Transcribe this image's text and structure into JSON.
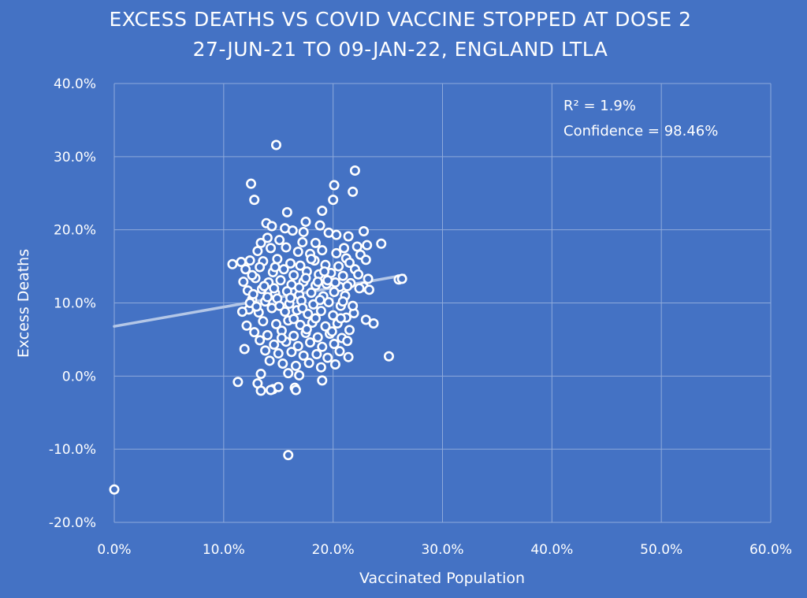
{
  "chart_data": {
    "type": "scatter",
    "title": "EXCESS DEATHS VS COVID VACCINE STOPPED AT DOSE 2",
    "subtitle": "27-JUN-21 TO 09-JAN-22, ENGLAND LTLA",
    "xlabel": "Vaccinated Population",
    "ylabel": "Excess Deaths",
    "xlim": [
      0,
      60
    ],
    "ylim": [
      -20,
      40
    ],
    "x_ticks": [
      "0.0%",
      "10.0%",
      "20.0%",
      "30.0%",
      "40.0%",
      "50.0%",
      "60.0%"
    ],
    "y_ticks": [
      "40.0%",
      "30.0%",
      "20.0%",
      "10.0%",
      "0.0%",
      "-10.0%",
      "-20.0%"
    ],
    "grid": true,
    "annotations": [
      "R² = 1.9%",
      "Confidence = 98.46%"
    ],
    "trendline": {
      "x": [
        0,
        26.5
      ],
      "y": [
        6.8,
        13.8
      ]
    },
    "colors": {
      "background": "#4472c4",
      "marker": "#ffffff",
      "trendline": "#b4c7e7",
      "grid": "#8eaadb"
    },
    "points": [
      [
        0.0,
        -15.5
      ],
      [
        14.8,
        31.6
      ],
      [
        22.0,
        28.1
      ],
      [
        12.5,
        26.3
      ],
      [
        20.1,
        26.1
      ],
      [
        21.8,
        25.2
      ],
      [
        12.8,
        24.1
      ],
      [
        20.0,
        24.1
      ],
      [
        19.0,
        22.6
      ],
      [
        15.8,
        22.4
      ],
      [
        17.5,
        21.1
      ],
      [
        13.9,
        20.9
      ],
      [
        18.8,
        20.6
      ],
      [
        14.4,
        20.5
      ],
      [
        15.6,
        20.2
      ],
      [
        16.3,
        19.9
      ],
      [
        17.3,
        19.7
      ],
      [
        19.6,
        19.6
      ],
      [
        20.3,
        19.3
      ],
      [
        21.4,
        19.1
      ],
      [
        22.8,
        19.8
      ],
      [
        14.0,
        18.9
      ],
      [
        15.1,
        18.6
      ],
      [
        17.2,
        18.3
      ],
      [
        18.4,
        18.2
      ],
      [
        21.0,
        17.5
      ],
      [
        22.2,
        17.7
      ],
      [
        23.1,
        17.9
      ],
      [
        24.4,
        18.1
      ],
      [
        13.4,
        18.2
      ],
      [
        13.1,
        17.1
      ],
      [
        14.3,
        17.5
      ],
      [
        15.7,
        17.6
      ],
      [
        16.8,
        17.0
      ],
      [
        17.9,
        16.7
      ],
      [
        19.0,
        17.2
      ],
      [
        20.3,
        16.8
      ],
      [
        21.2,
        16.1
      ],
      [
        22.5,
        16.6
      ],
      [
        23.0,
        15.9
      ],
      [
        10.8,
        15.3
      ],
      [
        11.6,
        15.6
      ],
      [
        12.4,
        15.8
      ],
      [
        13.6,
        15.7
      ],
      [
        14.9,
        16.0
      ],
      [
        16.1,
        15.4
      ],
      [
        17.0,
        15.1
      ],
      [
        18.3,
        15.8
      ],
      [
        19.3,
        15.2
      ],
      [
        20.5,
        15.0
      ],
      [
        21.5,
        15.5
      ],
      [
        22.0,
        14.6
      ],
      [
        12.0,
        14.6
      ],
      [
        13.3,
        14.9
      ],
      [
        14.5,
        14.2
      ],
      [
        15.5,
        14.6
      ],
      [
        16.4,
        13.8
      ],
      [
        17.6,
        14.3
      ],
      [
        18.7,
        13.9
      ],
      [
        19.8,
        14.1
      ],
      [
        20.9,
        13.7
      ],
      [
        22.3,
        13.9
      ],
      [
        23.2,
        13.3
      ],
      [
        11.8,
        12.9
      ],
      [
        12.9,
        13.4
      ],
      [
        14.1,
        12.8
      ],
      [
        15.2,
        13.1
      ],
      [
        16.2,
        12.5
      ],
      [
        17.3,
        12.9
      ],
      [
        18.4,
        12.4
      ],
      [
        19.4,
        12.6
      ],
      [
        20.6,
        12.2
      ],
      [
        21.6,
        12.7
      ],
      [
        22.8,
        12.2
      ],
      [
        26.0,
        13.2
      ],
      [
        26.3,
        13.3
      ],
      [
        12.2,
        11.7
      ],
      [
        13.5,
        11.9
      ],
      [
        14.7,
        11.3
      ],
      [
        15.8,
        11.6
      ],
      [
        16.9,
        11.1
      ],
      [
        18.0,
        11.4
      ],
      [
        19.1,
        10.9
      ],
      [
        20.1,
        11.5
      ],
      [
        21.1,
        11.0
      ],
      [
        23.3,
        11.8
      ],
      [
        12.6,
        10.5
      ],
      [
        13.8,
        10.2
      ],
      [
        14.9,
        10.6
      ],
      [
        16.0,
        9.9
      ],
      [
        17.1,
        10.3
      ],
      [
        18.2,
        9.8
      ],
      [
        19.6,
        10.1
      ],
      [
        20.7,
        9.6
      ],
      [
        12.3,
        9.1
      ],
      [
        13.2,
        8.7
      ],
      [
        14.4,
        9.3
      ],
      [
        15.6,
        8.8
      ],
      [
        16.7,
        9.0
      ],
      [
        17.7,
        8.5
      ],
      [
        18.9,
        8.9
      ],
      [
        20.0,
        8.3
      ],
      [
        21.9,
        8.6
      ],
      [
        23.0,
        7.7
      ],
      [
        23.7,
        7.2
      ],
      [
        11.7,
        8.8
      ],
      [
        12.1,
        6.9
      ],
      [
        13.6,
        7.5
      ],
      [
        14.8,
        7.1
      ],
      [
        15.9,
        7.6
      ],
      [
        17.0,
        7.0
      ],
      [
        18.1,
        7.3
      ],
      [
        19.3,
        6.8
      ],
      [
        20.4,
        7.2
      ],
      [
        21.2,
        8.0
      ],
      [
        12.8,
        6.0
      ],
      [
        14.0,
        5.6
      ],
      [
        15.3,
        6.2
      ],
      [
        16.4,
        5.5
      ],
      [
        17.5,
        5.9
      ],
      [
        18.6,
        5.3
      ],
      [
        19.7,
        5.8
      ],
      [
        20.8,
        5.2
      ],
      [
        21.5,
        6.3
      ],
      [
        13.3,
        4.9
      ],
      [
        14.6,
        4.3
      ],
      [
        15.7,
        4.7
      ],
      [
        16.8,
        4.1
      ],
      [
        17.9,
        4.6
      ],
      [
        19.0,
        4.0
      ],
      [
        20.1,
        4.4
      ],
      [
        21.3,
        4.8
      ],
      [
        11.9,
        3.7
      ],
      [
        13.8,
        3.5
      ],
      [
        15.0,
        3.1
      ],
      [
        16.2,
        3.3
      ],
      [
        17.3,
        2.8
      ],
      [
        18.5,
        3.0
      ],
      [
        19.5,
        2.5
      ],
      [
        20.6,
        3.4
      ],
      [
        21.4,
        2.6
      ],
      [
        25.1,
        2.7
      ],
      [
        14.2,
        2.1
      ],
      [
        15.4,
        1.7
      ],
      [
        16.6,
        1.4
      ],
      [
        17.8,
        1.8
      ],
      [
        18.9,
        1.2
      ],
      [
        20.2,
        1.6
      ],
      [
        13.4,
        0.3
      ],
      [
        15.9,
        0.4
      ],
      [
        16.9,
        0.1
      ],
      [
        19.0,
        -0.6
      ],
      [
        11.3,
        -0.8
      ],
      [
        13.1,
        -1.0
      ],
      [
        14.5,
        -1.8
      ],
      [
        15.0,
        -1.5
      ],
      [
        16.5,
        -1.6
      ],
      [
        13.4,
        -2.0
      ],
      [
        16.6,
        -1.9
      ],
      [
        14.3,
        -1.9
      ],
      [
        15.9,
        -10.8
      ],
      [
        12.7,
        11.2
      ],
      [
        14.0,
        10.8
      ],
      [
        18.6,
        12.9
      ],
      [
        17.5,
        13.4
      ],
      [
        15.1,
        9.6
      ],
      [
        16.4,
        7.8
      ],
      [
        19.9,
        6.1
      ],
      [
        20.7,
        7.9
      ],
      [
        14.7,
        14.9
      ],
      [
        18.0,
        16.0
      ],
      [
        19.2,
        14.3
      ],
      [
        13.7,
        12.3
      ],
      [
        12.6,
        13.8
      ],
      [
        16.9,
        12.1
      ],
      [
        20.2,
        12.8
      ],
      [
        21.3,
        12.3
      ],
      [
        17.6,
        6.4
      ],
      [
        18.4,
        7.9
      ],
      [
        15.3,
        5.2
      ],
      [
        16.1,
        10.7
      ],
      [
        19.5,
        13.1
      ],
      [
        14.6,
        12.0
      ],
      [
        17.2,
        9.3
      ],
      [
        18.8,
        10.4
      ],
      [
        12.4,
        10.0
      ],
      [
        13.0,
        9.5
      ],
      [
        20.9,
        10.2
      ],
      [
        21.8,
        9.6
      ],
      [
        22.4,
        12.0
      ]
    ]
  }
}
